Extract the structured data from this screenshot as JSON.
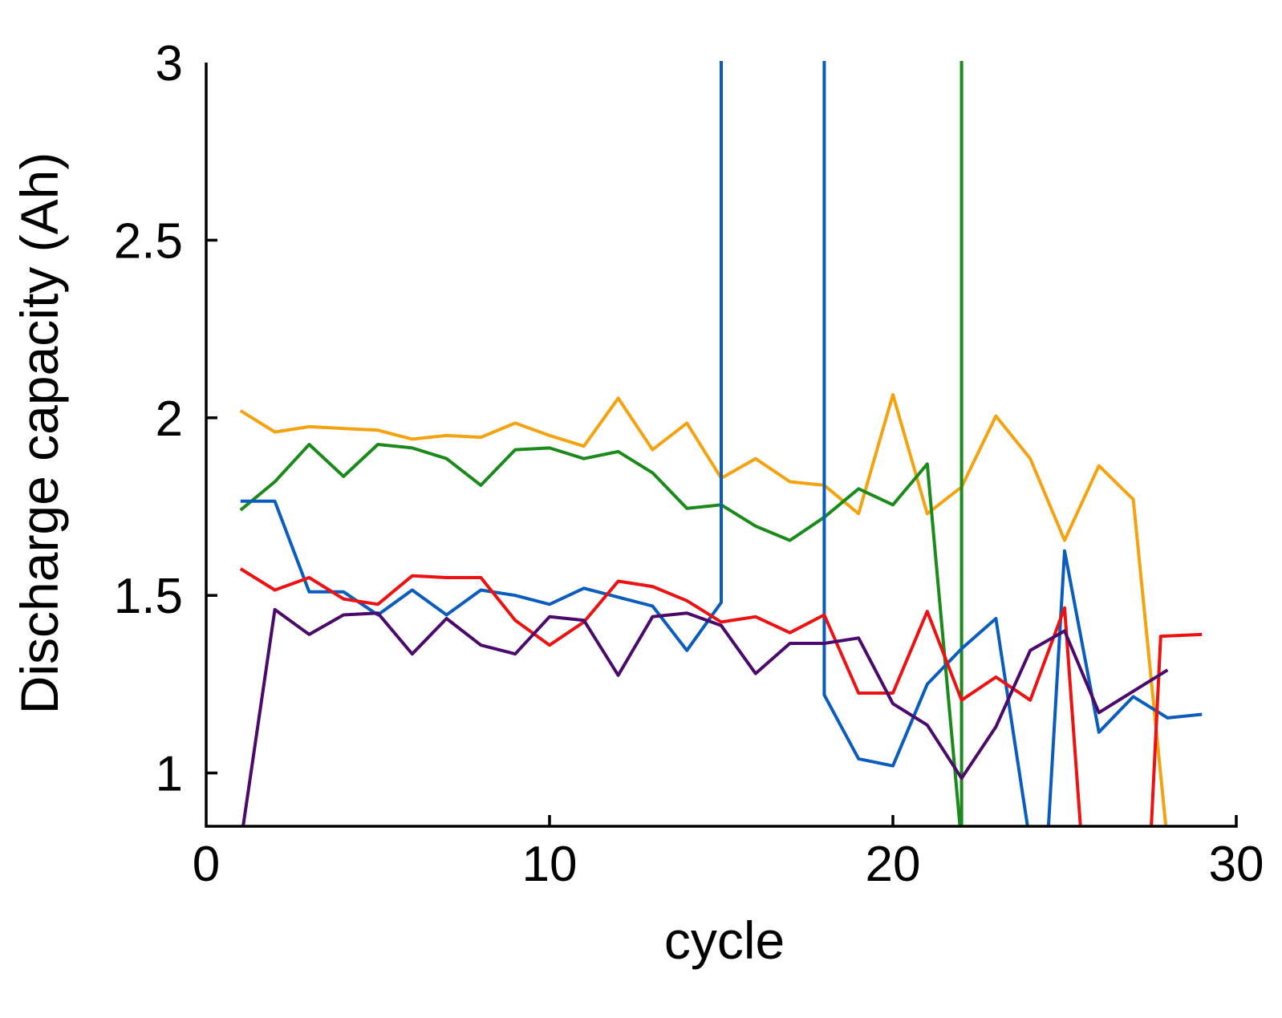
{
  "chart_data": {
    "type": "line",
    "title": "",
    "xlabel": "cycle",
    "ylabel": "Discharge capacity (Ah)",
    "xlim": [
      0,
      30
    ],
    "ylim": [
      0.85,
      3
    ],
    "xticks": [
      {
        "value": 0,
        "label": "0"
      },
      {
        "value": 10,
        "label": "10"
      },
      {
        "value": 20,
        "label": "20"
      },
      {
        "value": 30,
        "label": "30"
      }
    ],
    "yticks": [
      {
        "value": 1,
        "label": "1"
      },
      {
        "value": 1.5,
        "label": "1.5"
      },
      {
        "value": 2,
        "label": "2"
      },
      {
        "value": 2.5,
        "label": "2.5"
      },
      {
        "value": 3,
        "label": "3"
      }
    ],
    "grid": false,
    "series": [
      {
        "name": "orange",
        "color": "#f5a20f",
        "points": [
          [
            1,
            2.02
          ],
          [
            2,
            1.96
          ],
          [
            3,
            1.975
          ],
          [
            4,
            1.97
          ],
          [
            5,
            1.965
          ],
          [
            6,
            1.94
          ],
          [
            7,
            1.95
          ],
          [
            8,
            1.945
          ],
          [
            9,
            1.985
          ],
          [
            10,
            1.95
          ],
          [
            11,
            1.92
          ],
          [
            12,
            2.055
          ],
          [
            13,
            1.91
          ],
          [
            14,
            1.985
          ],
          [
            15,
            1.83
          ],
          [
            16,
            1.885
          ],
          [
            17,
            1.82
          ],
          [
            18,
            1.81
          ],
          [
            19,
            1.73
          ],
          [
            20,
            2.065
          ],
          [
            21,
            1.73
          ],
          [
            22,
            1.805
          ],
          [
            23,
            2.005
          ],
          [
            24,
            1.885
          ],
          [
            25,
            1.655
          ],
          [
            26,
            1.865
          ],
          [
            27,
            1.77
          ],
          [
            28,
            0.8
          ]
        ]
      },
      {
        "name": "green",
        "color": "#1a8a1a",
        "points": [
          [
            1,
            1.74
          ],
          [
            2,
            1.82
          ],
          [
            3,
            1.925
          ],
          [
            4,
            1.835
          ],
          [
            5,
            1.925
          ],
          [
            6,
            1.915
          ],
          [
            7,
            1.885
          ],
          [
            8,
            1.81
          ],
          [
            9,
            1.91
          ],
          [
            10,
            1.915
          ],
          [
            11,
            1.885
          ],
          [
            12,
            1.905
          ],
          [
            13,
            1.845
          ],
          [
            14,
            1.745
          ],
          [
            15,
            1.755
          ],
          [
            16,
            1.695
          ],
          [
            17,
            1.655
          ],
          [
            18,
            1.72
          ],
          [
            19,
            1.8
          ],
          [
            20,
            1.755
          ],
          [
            21,
            1.87
          ],
          [
            22,
            0.8
          ],
          [
            22,
            3.2
          ]
        ]
      },
      {
        "name": "blue",
        "color": "#0a5cbf",
        "points": [
          [
            1,
            1.765
          ],
          [
            2,
            1.765
          ],
          [
            3,
            1.51
          ],
          [
            4,
            1.51
          ],
          [
            5,
            1.445
          ],
          [
            6,
            1.515
          ],
          [
            7,
            1.445
          ],
          [
            8,
            1.515
          ],
          [
            9,
            1.5
          ],
          [
            10,
            1.475
          ],
          [
            11,
            1.52
          ],
          [
            12,
            1.495
          ],
          [
            13,
            1.47
          ],
          [
            14,
            1.345
          ],
          [
            15,
            1.48
          ],
          [
            15,
            3.2
          ],
          [
            18,
            3.2
          ],
          [
            18,
            1.22
          ],
          [
            19,
            1.04
          ],
          [
            20,
            1.02
          ],
          [
            21,
            1.25
          ],
          [
            22,
            1.35
          ],
          [
            23,
            1.435
          ],
          [
            24,
            0.8
          ],
          [
            24.5,
            0.8
          ],
          [
            25,
            1.625
          ],
          [
            26,
            1.115
          ],
          [
            27,
            1.215
          ],
          [
            28,
            1.155
          ],
          [
            29,
            1.165
          ]
        ]
      },
      {
        "name": "red",
        "color": "#ee1111",
        "points": [
          [
            1,
            1.575
          ],
          [
            2,
            1.515
          ],
          [
            3,
            1.55
          ],
          [
            4,
            1.49
          ],
          [
            5,
            1.475
          ],
          [
            6,
            1.555
          ],
          [
            7,
            1.55
          ],
          [
            8,
            1.55
          ],
          [
            9,
            1.43
          ],
          [
            10,
            1.36
          ],
          [
            11,
            1.425
          ],
          [
            12,
            1.54
          ],
          [
            13,
            1.525
          ],
          [
            14,
            1.485
          ],
          [
            15,
            1.425
          ],
          [
            16,
            1.44
          ],
          [
            17,
            1.395
          ],
          [
            18,
            1.445
          ],
          [
            19,
            1.225
          ],
          [
            20,
            1.225
          ],
          [
            21,
            1.455
          ],
          [
            22,
            1.205
          ],
          [
            23,
            1.27
          ],
          [
            24,
            1.205
          ],
          [
            25,
            1.465
          ],
          [
            25.5,
            0.8
          ],
          [
            27.5,
            0.8
          ],
          [
            27.8,
            1.385
          ],
          [
            29,
            1.39
          ]
        ]
      },
      {
        "name": "purple",
        "color": "#4b0a6b",
        "points": [
          [
            1,
            0.8
          ],
          [
            2,
            1.46
          ],
          [
            3,
            1.39
          ],
          [
            4,
            1.445
          ],
          [
            5,
            1.45
          ],
          [
            6,
            1.335
          ],
          [
            7,
            1.435
          ],
          [
            8,
            1.36
          ],
          [
            9,
            1.335
          ],
          [
            10,
            1.44
          ],
          [
            11,
            1.43
          ],
          [
            12,
            1.275
          ],
          [
            13,
            1.44
          ],
          [
            14,
            1.45
          ],
          [
            15,
            1.415
          ],
          [
            16,
            1.28
          ],
          [
            17,
            1.365
          ],
          [
            18,
            1.365
          ],
          [
            19,
            1.38
          ],
          [
            20,
            1.195
          ],
          [
            21,
            1.135
          ],
          [
            22,
            0.985
          ],
          [
            23,
            1.13
          ],
          [
            24,
            1.345
          ],
          [
            25,
            1.4
          ],
          [
            26,
            1.17
          ],
          [
            27,
            1.23
          ],
          [
            28,
            1.29
          ]
        ]
      }
    ]
  }
}
